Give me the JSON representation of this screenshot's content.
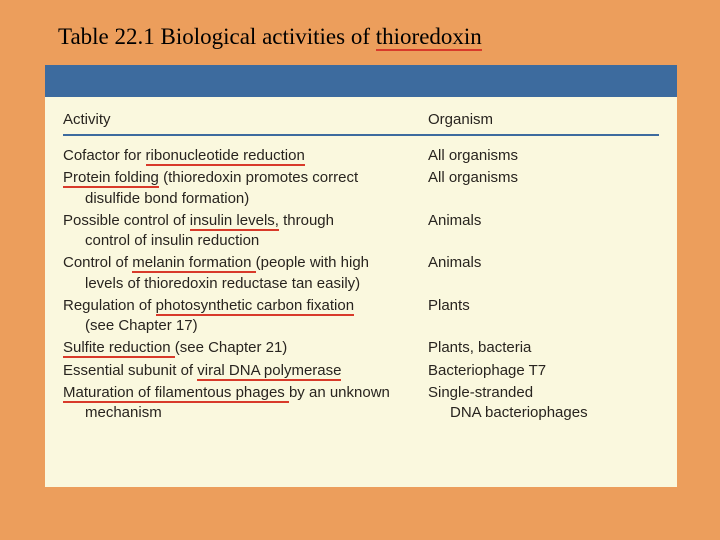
{
  "colors": {
    "slide_bg": "#ec9e5c",
    "blue_bar": "#3d6b9e",
    "table_bg": "#faf8de",
    "underline": "#d83a2a",
    "text": "#28241f",
    "header_rule": "#3d6b9e"
  },
  "title": {
    "prefix": "Table 22.1 Biological activities of ",
    "underlined": "thioredoxin"
  },
  "table": {
    "headers": {
      "activity": "Activity",
      "organism": "Organism"
    },
    "rows": [
      {
        "activity_pre": "Cofactor for ",
        "activity_u": "ribonucleotide reduction",
        "activity_post": "",
        "activity_cont": "",
        "organism": "All organisms",
        "organism_cont": ""
      },
      {
        "activity_pre": "",
        "activity_u": "Protein folding",
        "activity_post": " (thioredoxin promotes correct",
        "activity_cont": "disulfide bond formation)",
        "organism": "All organisms",
        "organism_cont": ""
      },
      {
        "activity_pre": "Possible control of ",
        "activity_u": "insulin levels,",
        "activity_post": " through",
        "activity_cont": "control of insulin reduction",
        "organism": "Animals",
        "organism_cont": ""
      },
      {
        "activity_pre": "Control of ",
        "activity_u": "melanin formation ",
        "activity_post": "(people with high",
        "activity_cont": "levels of thioredoxin reductase tan easily)",
        "organism": "Animals",
        "organism_cont": ""
      },
      {
        "activity_pre": "Regulation of ",
        "activity_u": "photosynthetic carbon fixation",
        "activity_post": "",
        "activity_cont": "(see Chapter 17)",
        "organism": "Plants",
        "organism_cont": ""
      },
      {
        "activity_pre": "",
        "activity_u": "Sulfite reduction ",
        "activity_post": "(see Chapter 21)",
        "activity_cont": "",
        "organism": "Plants, bacteria",
        "organism_cont": ""
      },
      {
        "activity_pre": "Essential subunit of ",
        "activity_u": "viral DNA polymerase",
        "activity_post": "",
        "activity_cont": "",
        "organism": "Bacteriophage T7",
        "organism_cont": ""
      },
      {
        "activity_pre": "",
        "activity_u": "Maturation of filamentous phages ",
        "activity_post": "by an unknown",
        "activity_cont": "mechanism",
        "organism": "Single-stranded",
        "organism_cont": "DNA bacteriophages"
      }
    ]
  }
}
